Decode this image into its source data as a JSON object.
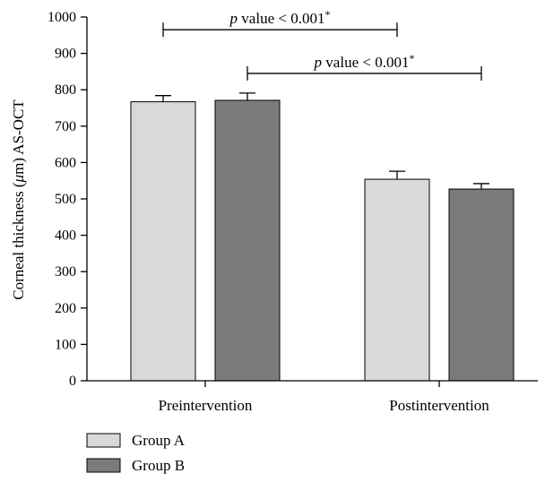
{
  "chart_data": {
    "type": "bar",
    "categories": [
      "Preintervention",
      "Postintervention"
    ],
    "series": [
      {
        "name": "Group A",
        "values": [
          767,
          554
        ],
        "errors": [
          17,
          22
        ],
        "color": "#d9d9d9"
      },
      {
        "name": "Group B",
        "values": [
          771,
          527
        ],
        "errors": [
          20,
          15
        ],
        "color": "#7b7b7d"
      }
    ],
    "title": "",
    "xlabel": "",
    "ylabel_pre": "Corneal thickness (",
    "ylabel_mu": "μ",
    "ylabel_post": "m) AS-OCT",
    "ylim": [
      0,
      1000
    ],
    "yticks": [
      0,
      100,
      200,
      300,
      400,
      500,
      600,
      700,
      800,
      900,
      1000
    ],
    "legend_position": "bottom-left",
    "annotations": [
      {
        "p": "p",
        "rest": " value < 0.001",
        "sup": "*",
        "from_bar": "Preintervention:Group A",
        "to_bar": "Postintervention:Group A",
        "y": 965
      },
      {
        "p": "p",
        "rest": " value < 0.001",
        "sup": "*",
        "from_bar": "Preintervention:Group B",
        "to_bar": "Postintervention:Group B",
        "y": 845
      }
    ]
  }
}
